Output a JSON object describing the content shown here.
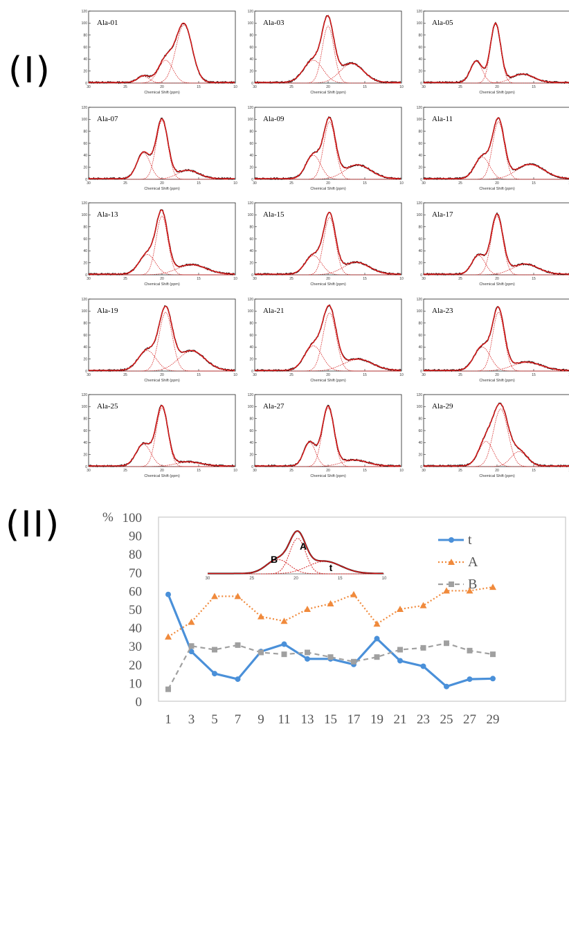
{
  "part_labels": {
    "part1": "(I)",
    "part2": "(II)"
  },
  "chart_data": [
    {
      "type": "line",
      "description_role": "grid of spectral deconvolution panels",
      "xlabel": "Chemical Shift (ppm)",
      "x_ticks": [
        "30",
        "25",
        "20",
        "15",
        "10"
      ],
      "y_ticks": [
        "0",
        "20",
        "40",
        "60",
        "80",
        "100",
        "120"
      ],
      "x_range": [
        30,
        10
      ],
      "y_range": [
        0,
        120
      ],
      "panels": [
        {
          "label": "Ala-01",
          "peaks": [
            {
              "c": 22.5,
              "h": 11,
              "w": 0.8
            },
            {
              "c": 19.5,
              "h": 38,
              "w": 1.0
            },
            {
              "c": 17.0,
              "h": 97,
              "w": 1.1
            }
          ]
        },
        {
          "label": "Ala-03",
          "peaks": [
            {
              "c": 22.0,
              "h": 38,
              "w": 1.3
            },
            {
              "c": 20.0,
              "h": 95,
              "w": 0.8
            },
            {
              "c": 16.8,
              "h": 32,
              "w": 1.6
            }
          ]
        },
        {
          "label": "Ala-05",
          "peaks": [
            {
              "c": 22.8,
              "h": 36,
              "w": 0.8
            },
            {
              "c": 20.2,
              "h": 98,
              "w": 0.7
            },
            {
              "c": 16.5,
              "h": 14,
              "w": 1.5
            }
          ]
        },
        {
          "label": "Ala-07",
          "peaks": [
            {
              "c": 22.5,
              "h": 44,
              "w": 0.9
            },
            {
              "c": 20.0,
              "h": 98,
              "w": 0.8
            },
            {
              "c": 16.5,
              "h": 14,
              "w": 1.5
            }
          ]
        },
        {
          "label": "Ala-09",
          "peaks": [
            {
              "c": 22.0,
              "h": 40,
              "w": 1.0
            },
            {
              "c": 19.8,
              "h": 96,
              "w": 0.8
            },
            {
              "c": 16.0,
              "h": 23,
              "w": 1.8
            }
          ]
        },
        {
          "label": "Ala-11",
          "peaks": [
            {
              "c": 22.0,
              "h": 37,
              "w": 1.0
            },
            {
              "c": 19.8,
              "h": 96,
              "w": 0.8
            },
            {
              "c": 15.5,
              "h": 24,
              "w": 1.9
            }
          ]
        },
        {
          "label": "Ala-13",
          "peaks": [
            {
              "c": 22.0,
              "h": 34,
              "w": 1.1
            },
            {
              "c": 20.0,
              "h": 98,
              "w": 0.8
            },
            {
              "c": 16.0,
              "h": 16,
              "w": 2.0
            }
          ]
        },
        {
          "label": "Ala-15",
          "peaks": [
            {
              "c": 22.0,
              "h": 32,
              "w": 1.1
            },
            {
              "c": 19.8,
              "h": 96,
              "w": 0.8
            },
            {
              "c": 16.2,
              "h": 20,
              "w": 1.8
            }
          ]
        },
        {
          "label": "Ala-17",
          "peaks": [
            {
              "c": 22.5,
              "h": 32,
              "w": 0.9
            },
            {
              "c": 20.0,
              "h": 98,
              "w": 0.8
            },
            {
              "c": 16.2,
              "h": 17,
              "w": 1.8
            }
          ]
        },
        {
          "label": "Ala-19",
          "peaks": [
            {
              "c": 22.0,
              "h": 34,
              "w": 1.2
            },
            {
              "c": 19.5,
              "h": 98,
              "w": 0.9
            },
            {
              "c": 16.0,
              "h": 33,
              "w": 1.8
            }
          ]
        },
        {
          "label": "Ala-21",
          "peaks": [
            {
              "c": 22.0,
              "h": 42,
              "w": 1.2
            },
            {
              "c": 19.8,
              "h": 97,
              "w": 0.9
            },
            {
              "c": 16.0,
              "h": 19,
              "w": 2.0
            }
          ]
        },
        {
          "label": "Ala-23",
          "peaks": [
            {
              "c": 22.0,
              "h": 40,
              "w": 1.1
            },
            {
              "c": 19.8,
              "h": 98,
              "w": 0.8
            },
            {
              "c": 16.0,
              "h": 14,
              "w": 2.0
            }
          ]
        },
        {
          "label": "Ala-25",
          "peaks": [
            {
              "c": 22.5,
              "h": 37,
              "w": 1.0
            },
            {
              "c": 20.0,
              "h": 98,
              "w": 0.8
            },
            {
              "c": 16.5,
              "h": 7,
              "w": 1.8
            }
          ]
        },
        {
          "label": "Ala-27",
          "peaks": [
            {
              "c": 22.5,
              "h": 40,
              "w": 0.8
            },
            {
              "c": 20.0,
              "h": 98,
              "w": 0.8
            },
            {
              "c": 16.5,
              "h": 10,
              "w": 1.8
            }
          ]
        },
        {
          "label": "Ala-29",
          "peaks": [
            {
              "c": 21.5,
              "h": 42,
              "w": 1.0
            },
            {
              "c": 19.5,
              "h": 96,
              "w": 1.0
            },
            {
              "c": 17.0,
              "h": 25,
              "w": 1.1
            }
          ]
        }
      ]
    },
    {
      "type": "line",
      "y_unit_label": "%",
      "categories": [
        "1",
        "3",
        "5",
        "7",
        "9",
        "11",
        "13",
        "15",
        "17",
        "19",
        "21",
        "23",
        "25",
        "27",
        "29"
      ],
      "y_ticks": [
        "0",
        "10",
        "20",
        "30",
        "40",
        "50",
        "60",
        "70",
        "80",
        "90",
        "100"
      ],
      "ylim": [
        0,
        100
      ],
      "grid": false,
      "legend_position": "top-right",
      "series": [
        {
          "name": "t",
          "color": "#4a90d9",
          "style": "solid",
          "marker": "circle",
          "values": [
            58,
            27,
            15,
            12,
            27,
            31,
            23,
            23,
            20,
            34,
            22,
            19,
            8,
            12,
            12.3
          ]
        },
        {
          "name": "A",
          "color": "#f08a3c",
          "style": "dotted",
          "marker": "triangle",
          "values": [
            35,
            43,
            57,
            57,
            46,
            43.5,
            50,
            53,
            58,
            42,
            50,
            52,
            60,
            60,
            62
          ]
        },
        {
          "name": "B",
          "color": "#a0a0a0",
          "style": "dashed",
          "marker": "square",
          "values": [
            6.5,
            30,
            28,
            30.5,
            26.5,
            25.5,
            26.5,
            24,
            21.5,
            24,
            28,
            29,
            31.5,
            27.5,
            25.5
          ]
        }
      ],
      "inset": {
        "x_ticks": [
          "30",
          "25",
          "20",
          "15",
          "10"
        ],
        "labels": [
          "B",
          "A",
          "t"
        ]
      }
    }
  ]
}
